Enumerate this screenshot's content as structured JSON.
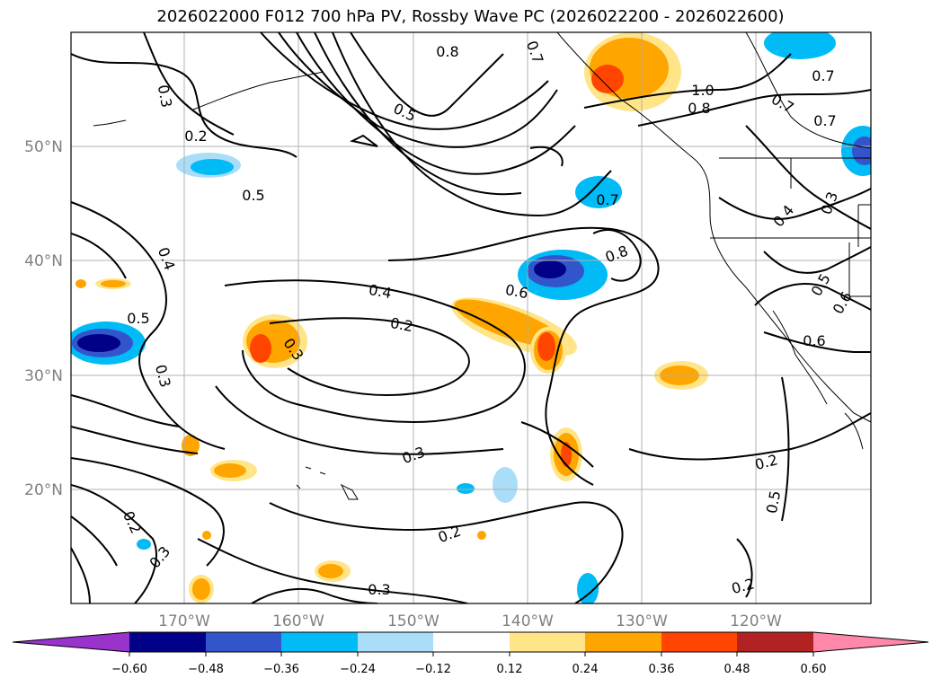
{
  "title": "2026022000 F012 700 hPa PV, Rossby Wave PC (2026022200 - 2026022600)",
  "map": {
    "projection": "PlateCarree",
    "lon_range": [
      -180,
      -110
    ],
    "lat_range": [
      10,
      60
    ],
    "lat_ticks": [
      "50°N",
      "40°N",
      "30°N",
      "20°N"
    ],
    "lon_ticks": [
      "170°W",
      "160°W",
      "150°W",
      "140°W",
      "130°W",
      "120°W"
    ],
    "grid": true,
    "contour_color": "#000000",
    "contour_labels": [
      "0.8",
      "0.7",
      "0.3",
      "0.2",
      "0.5",
      "1.0",
      "0.8",
      "0.7",
      "0.7",
      "0.7",
      "0.5",
      "0.7",
      "0.3",
      "0.4",
      "0.4",
      "0.8",
      "0.5",
      "0.6",
      "0.4",
      "0.6",
      "0.2",
      "0.3",
      "0.6",
      "0.5",
      "0.3",
      "0.2",
      "0.5",
      "0.2",
      "0.2",
      "0.3",
      "0.3",
      "0.2",
      "0.3"
    ]
  },
  "colorbar": {
    "ticks": [
      "−0.60",
      "−0.48",
      "−0.36",
      "−0.24",
      "−0.12",
      "0.12",
      "0.24",
      "0.36",
      "0.48",
      "0.60"
    ],
    "colors": [
      "#9933cc",
      "#000088",
      "#3355cc",
      "#00bbf5",
      "#aaddf8",
      "#ffffff",
      "#ffe588",
      "#ffa500",
      "#ff4500",
      "#b22222",
      "#ff88aa"
    ]
  }
}
